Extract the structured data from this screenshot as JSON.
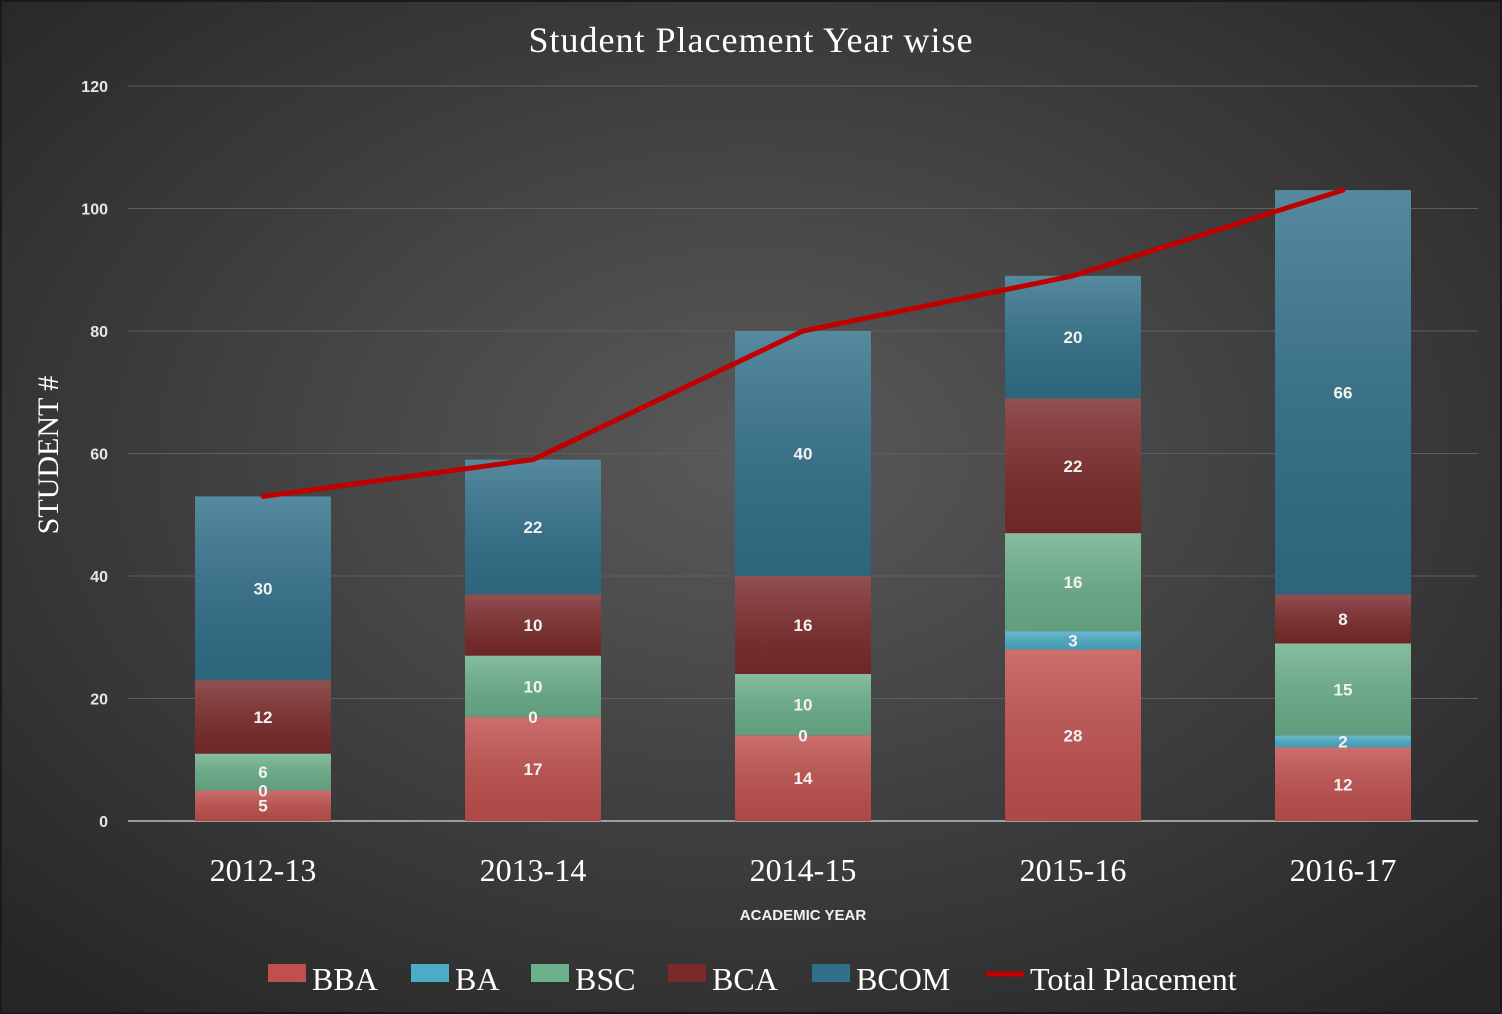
{
  "chart_data": {
    "type": "bar",
    "stacked": true,
    "title": "Student Placement Year wise",
    "xlabel": "ACADEMIC YEAR",
    "ylabel": "STUDENT #",
    "ylim": [
      0,
      120
    ],
    "yticks": [
      0,
      20,
      40,
      60,
      80,
      100,
      120
    ],
    "grid": true,
    "legend_position": "bottom",
    "categories": [
      "2012-13",
      "2013-14",
      "2014-15",
      "2015-16",
      "2016-17"
    ],
    "series": [
      {
        "name": "BBA",
        "color": "#c0504d",
        "values": [
          5,
          17,
          14,
          28,
          12
        ]
      },
      {
        "name": "BA",
        "color": "#4bacc6",
        "values": [
          0,
          0,
          0,
          3,
          2
        ]
      },
      {
        "name": "BSC",
        "color": "#6bb08b",
        "values": [
          6,
          10,
          10,
          16,
          15
        ]
      },
      {
        "name": "BCA",
        "color": "#7b2a2a",
        "values": [
          12,
          10,
          16,
          22,
          8
        ]
      },
      {
        "name": "BCOM",
        "color": "#31708a",
        "values": [
          30,
          22,
          40,
          20,
          66
        ]
      }
    ],
    "line_series": {
      "name": "Total Placement",
      "type": "line",
      "color": "#c00000",
      "values": [
        53,
        59,
        80,
        89,
        103
      ]
    }
  }
}
